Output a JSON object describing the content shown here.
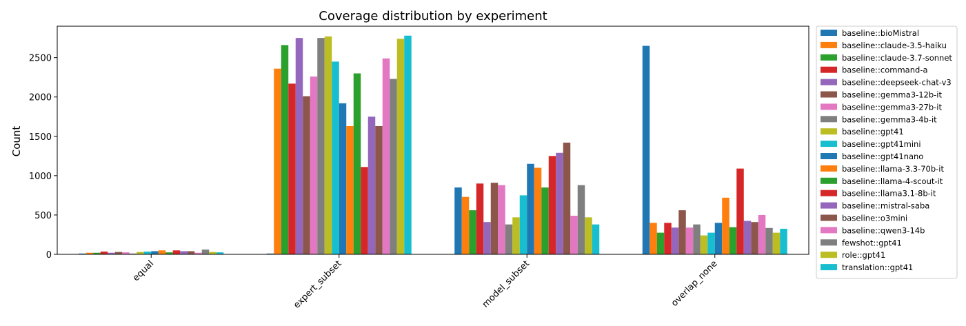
{
  "chart_data": {
    "type": "bar",
    "title": "Coverage distribution by experiment",
    "xlabel": "",
    "ylabel": "Count",
    "ylim": [
      0,
      2900
    ],
    "yticks": [
      0,
      500,
      1000,
      1500,
      2000,
      2500
    ],
    "legend": "outside-right",
    "grid": false,
    "categories": [
      "equal",
      "expert_subset",
      "model_subset",
      "overlap_none"
    ],
    "series": [
      {
        "name": "baseline::bioMistral",
        "color": "#1f77b4",
        "values": [
          10,
          10,
          850,
          2650
        ]
      },
      {
        "name": "baseline::claude-3.5-haiku",
        "color": "#ff7f0e",
        "values": [
          20,
          2360,
          730,
          400
        ]
      },
      {
        "name": "baseline::claude-3.7-sonnet",
        "color": "#2ca02c",
        "values": [
          20,
          2660,
          560,
          275
        ]
      },
      {
        "name": "baseline::command-a",
        "color": "#d62728",
        "values": [
          35,
          2170,
          900,
          400
        ]
      },
      {
        "name": "baseline::deepseek-chat-v3",
        "color": "#9467bd",
        "values": [
          20,
          2750,
          410,
          340
        ]
      },
      {
        "name": "baseline::gemma3-12b-it",
        "color": "#8c564b",
        "values": [
          30,
          2010,
          910,
          560
        ]
      },
      {
        "name": "baseline::gemma3-27b-it",
        "color": "#e377c2",
        "values": [
          25,
          2260,
          880,
          340
        ]
      },
      {
        "name": "baseline::gemma3-4b-it",
        "color": "#7f7f7f",
        "values": [
          10,
          2750,
          380,
          380
        ]
      },
      {
        "name": "baseline::gpt41",
        "color": "#bcbd22",
        "values": [
          30,
          2770,
          470,
          240
        ]
      },
      {
        "name": "baseline::gpt41mini",
        "color": "#17becf",
        "values": [
          35,
          2450,
          750,
          275
        ]
      },
      {
        "name": "baseline::gpt41nano",
        "color": "#1f77b4",
        "values": [
          40,
          1920,
          1150,
          400
        ]
      },
      {
        "name": "baseline::llama-3.3-70b-it",
        "color": "#ff7f0e",
        "values": [
          50,
          1630,
          1100,
          720
        ]
      },
      {
        "name": "baseline::llama-4-scout-it",
        "color": "#2ca02c",
        "values": [
          25,
          2300,
          850,
          345
        ]
      },
      {
        "name": "baseline::llama3.1-8b-it",
        "color": "#d62728",
        "values": [
          50,
          1110,
          1250,
          1090
        ]
      },
      {
        "name": "baseline::mistral-saba",
        "color": "#9467bd",
        "values": [
          40,
          1750,
          1290,
          425
        ]
      },
      {
        "name": "baseline::o3mini",
        "color": "#8c564b",
        "values": [
          40,
          1630,
          1420,
          410
        ]
      },
      {
        "name": "baseline::qwen3-14b",
        "color": "#e377c2",
        "values": [
          20,
          2490,
          490,
          500
        ]
      },
      {
        "name": "fewshot::gpt41",
        "color": "#7f7f7f",
        "values": [
          60,
          2230,
          880,
          335
        ]
      },
      {
        "name": "role::gpt41",
        "color": "#bcbd22",
        "values": [
          30,
          2740,
          470,
          275
        ]
      },
      {
        "name": "translation::gpt41",
        "color": "#17becf",
        "values": [
          25,
          2780,
          380,
          325
        ]
      }
    ]
  }
}
